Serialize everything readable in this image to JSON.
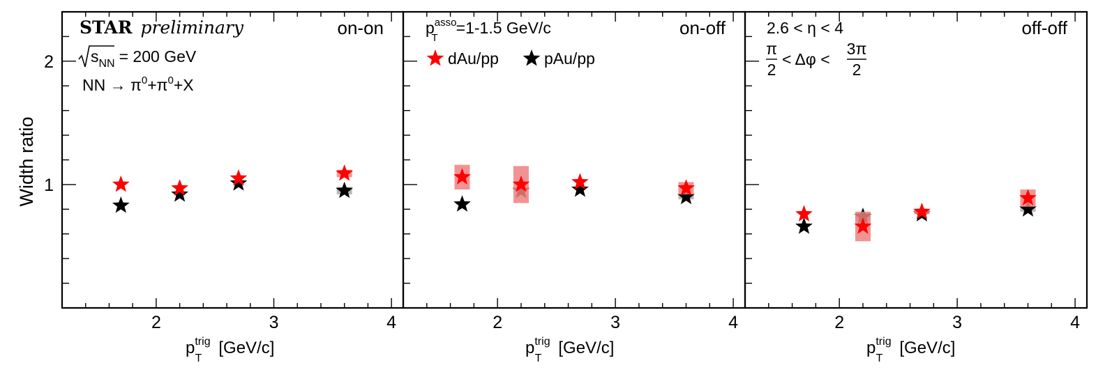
{
  "colors": {
    "series_dAu": "#ff0000",
    "series_pAu": "#000000",
    "syst_dAu": "#f08080",
    "syst_pAu": "#9a9a9a"
  },
  "labels": {
    "ylabel": "Width ratio",
    "xlabel_p": "p",
    "xlabel_sup": "trig",
    "xlabel_sub": "T",
    "xlabel_unit": "[GeV/c]",
    "logo": "STAR",
    "preliminary": "preliminary",
    "sqrt_s": "s",
    "sqrt_s_sub": "NN",
    "energy": "= 200 GeV",
    "reaction_a": "NN → π",
    "reaction_sup1": "0",
    "reaction_b": "+π",
    "reaction_sup2": "0",
    "reaction_c": "+X",
    "assoc_p": "p",
    "assoc_sup": "asso",
    "assoc_sub": "T",
    "assoc_range": "=1-1.5 GeV/c",
    "legend_dAu": "dAu/pp",
    "legend_pAu": "pAu/pp",
    "eta_range": "2.6 < η < 4",
    "dphi_left_num": "π",
    "dphi_left_den": "2",
    "dphi_mid": "< Δφ <",
    "dphi_right_num": "3π",
    "dphi_right_den": "2"
  },
  "chart_data": [
    {
      "type": "scatter",
      "panel_label": "on-on",
      "xlim": [
        1.2,
        4.1
      ],
      "ylim": [
        0,
        2.4
      ],
      "x_ticklabels": [
        "2",
        "3",
        "4"
      ],
      "y_ticklabels": [
        "1",
        "2"
      ],
      "series": [
        {
          "name": "dAu/pp",
          "x": [
            1.7,
            2.2,
            2.7,
            3.6
          ],
          "y": [
            1.0,
            0.97,
            1.05,
            1.09
          ],
          "syst": [
            0.0,
            0.0,
            0.0,
            0.03
          ]
        },
        {
          "name": "pAu/pp",
          "x": [
            1.7,
            2.2,
            2.7,
            3.6
          ],
          "y": [
            0.83,
            0.92,
            1.01,
            0.95
          ],
          "syst": [
            0.0,
            0.0,
            0.0,
            0.03
          ]
        }
      ]
    },
    {
      "type": "scatter",
      "panel_label": "on-off",
      "xlim": [
        1.2,
        4.1
      ],
      "ylim": [
        0,
        2.4
      ],
      "x_ticklabels": [
        "2",
        "3",
        "4"
      ],
      "y_ticklabels": [],
      "series": [
        {
          "name": "dAu/pp",
          "x": [
            1.7,
            2.2,
            2.7,
            3.6
          ],
          "y": [
            1.06,
            1.0,
            1.02,
            0.97
          ],
          "syst": [
            0.1,
            0.15,
            0.0,
            0.05
          ]
        },
        {
          "name": "pAu/pp",
          "x": [
            1.7,
            2.2,
            2.7,
            3.6
          ],
          "y": [
            0.84,
            0.95,
            0.96,
            0.9
          ],
          "syst": [
            0.0,
            0.0,
            0.0,
            0.02
          ]
        }
      ]
    },
    {
      "type": "scatter",
      "panel_label": "off-off",
      "xlim": [
        1.2,
        4.1
      ],
      "ylim": [
        0,
        2.4
      ],
      "x_ticklabels": [
        "2",
        "3",
        "4"
      ],
      "y_ticklabels": [],
      "series": [
        {
          "name": "dAu/pp",
          "x": [
            1.7,
            2.2,
            2.7,
            3.6
          ],
          "y": [
            0.76,
            0.66,
            0.78,
            0.89
          ],
          "syst": [
            0.0,
            0.12,
            0.02,
            0.07
          ]
        },
        {
          "name": "pAu/pp",
          "x": [
            1.7,
            2.2,
            2.7,
            3.6
          ],
          "y": [
            0.66,
            0.74,
            0.76,
            0.8
          ],
          "syst": [
            0.0,
            0.03,
            0.0,
            0.02
          ]
        }
      ]
    }
  ]
}
